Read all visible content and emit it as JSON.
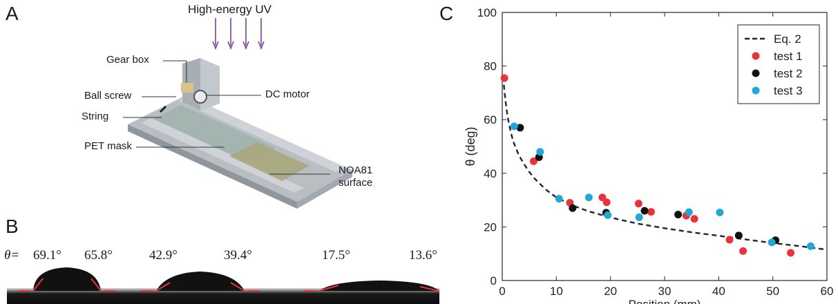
{
  "panels": {
    "a": "A",
    "b": "B",
    "c": "C"
  },
  "setup": {
    "uv_label": "High-energy UV",
    "callouts": {
      "gear_box": "Gear box",
      "ball_screw": "Ball screw",
      "string": "String",
      "dc_motor": "DC motor",
      "pet_mask": "PET mask",
      "noa81_line1": "NOA81",
      "noa81_line2": "surface"
    }
  },
  "droplets": {
    "theta_prefix": "θ=",
    "angles": [
      "69.1°",
      "65.8°",
      "42.9°",
      "39.4°",
      "17.5°",
      "13.6°"
    ]
  },
  "colors": {
    "uv_arrow": "#7b3f98",
    "test1": "#e8333a",
    "test2": "#111111",
    "test3": "#22a7d6",
    "fit": "#222222"
  },
  "chart_data": {
    "type": "scatter",
    "xlabel": "Position (mm)",
    "ylabel": "θ (deg)",
    "xlim": [
      0,
      60
    ],
    "ylim": [
      0,
      100
    ],
    "xticks": [
      "0",
      "10",
      "20",
      "30",
      "40",
      "50",
      "60"
    ],
    "yticks": [
      "0",
      "20",
      "40",
      "60",
      "80",
      "100"
    ],
    "legend_position": "top-right",
    "fit": {
      "name": "Eq. 2",
      "x": [
        0.3,
        0.6,
        1,
        1.5,
        2,
        3,
        4,
        5,
        6,
        8,
        10,
        13,
        16,
        20,
        25,
        30,
        35,
        40,
        45,
        50,
        55,
        60
      ],
      "y": [
        73,
        67,
        61,
        56,
        52,
        47,
        43.5,
        40.5,
        38,
        34,
        31,
        28,
        25.8,
        23.5,
        21.2,
        19.5,
        18,
        16.7,
        15.3,
        14,
        12.8,
        11.5
      ]
    },
    "series": [
      {
        "name": "test 1",
        "x": [
          0.4,
          5.8,
          12.5,
          18.5,
          19.3,
          25.2,
          27.5,
          34,
          35.5,
          42,
          44.5,
          53.3
        ],
        "y": [
          75.5,
          44.5,
          29,
          31,
          29.2,
          28.7,
          25.6,
          24.2,
          23,
          15.2,
          11,
          10.3
        ]
      },
      {
        "name": "test 2",
        "x": [
          3.3,
          6.8,
          13,
          19.2,
          26.3,
          32.5,
          43.7,
          50.5
        ],
        "y": [
          57,
          46,
          27,
          25.3,
          26,
          24.6,
          16.8,
          15
        ]
      },
      {
        "name": "test 3",
        "x": [
          2.2,
          7,
          10.5,
          16,
          19.5,
          25.3,
          34.5,
          40.2,
          49.8,
          57
        ],
        "y": [
          57.5,
          48,
          30.5,
          31,
          24.4,
          23.6,
          25.5,
          25.4,
          14.2,
          12.8
        ]
      }
    ]
  }
}
